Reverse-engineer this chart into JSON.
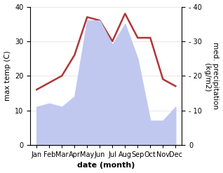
{
  "months": [
    "Jan",
    "Feb",
    "Mar",
    "Apr",
    "May",
    "Jun",
    "Jul",
    "Aug",
    "Sep",
    "Oct",
    "Nov",
    "Dec"
  ],
  "x": [
    0,
    1,
    2,
    3,
    4,
    5,
    6,
    7,
    8,
    9,
    10,
    11
  ],
  "temperature": [
    16,
    18,
    20,
    26,
    37,
    36,
    30,
    38,
    31,
    31,
    19,
    17
  ],
  "precipitation": [
    11,
    12,
    11,
    14,
    36,
    36,
    29,
    35,
    25,
    7,
    7,
    11
  ],
  "temp_color": "#b03535",
  "precip_fill_color": "#c0c8f0",
  "precip_line_color": "#a0a8e0",
  "ylim": [
    0,
    40
  ],
  "xlabel": "date (month)",
  "ylabel_left": "max temp (C)",
  "ylabel_right": "med. precipitation\n (kg/m2)",
  "bg_color": "#ffffff",
  "label_fontsize": 7.5,
  "tick_fontsize": 7,
  "xlabel_fontsize": 8,
  "temp_linewidth": 1.8,
  "right_ytick_labels": [
    "0",
    "- 10",
    "- 20",
    "- 30",
    "- 40"
  ]
}
